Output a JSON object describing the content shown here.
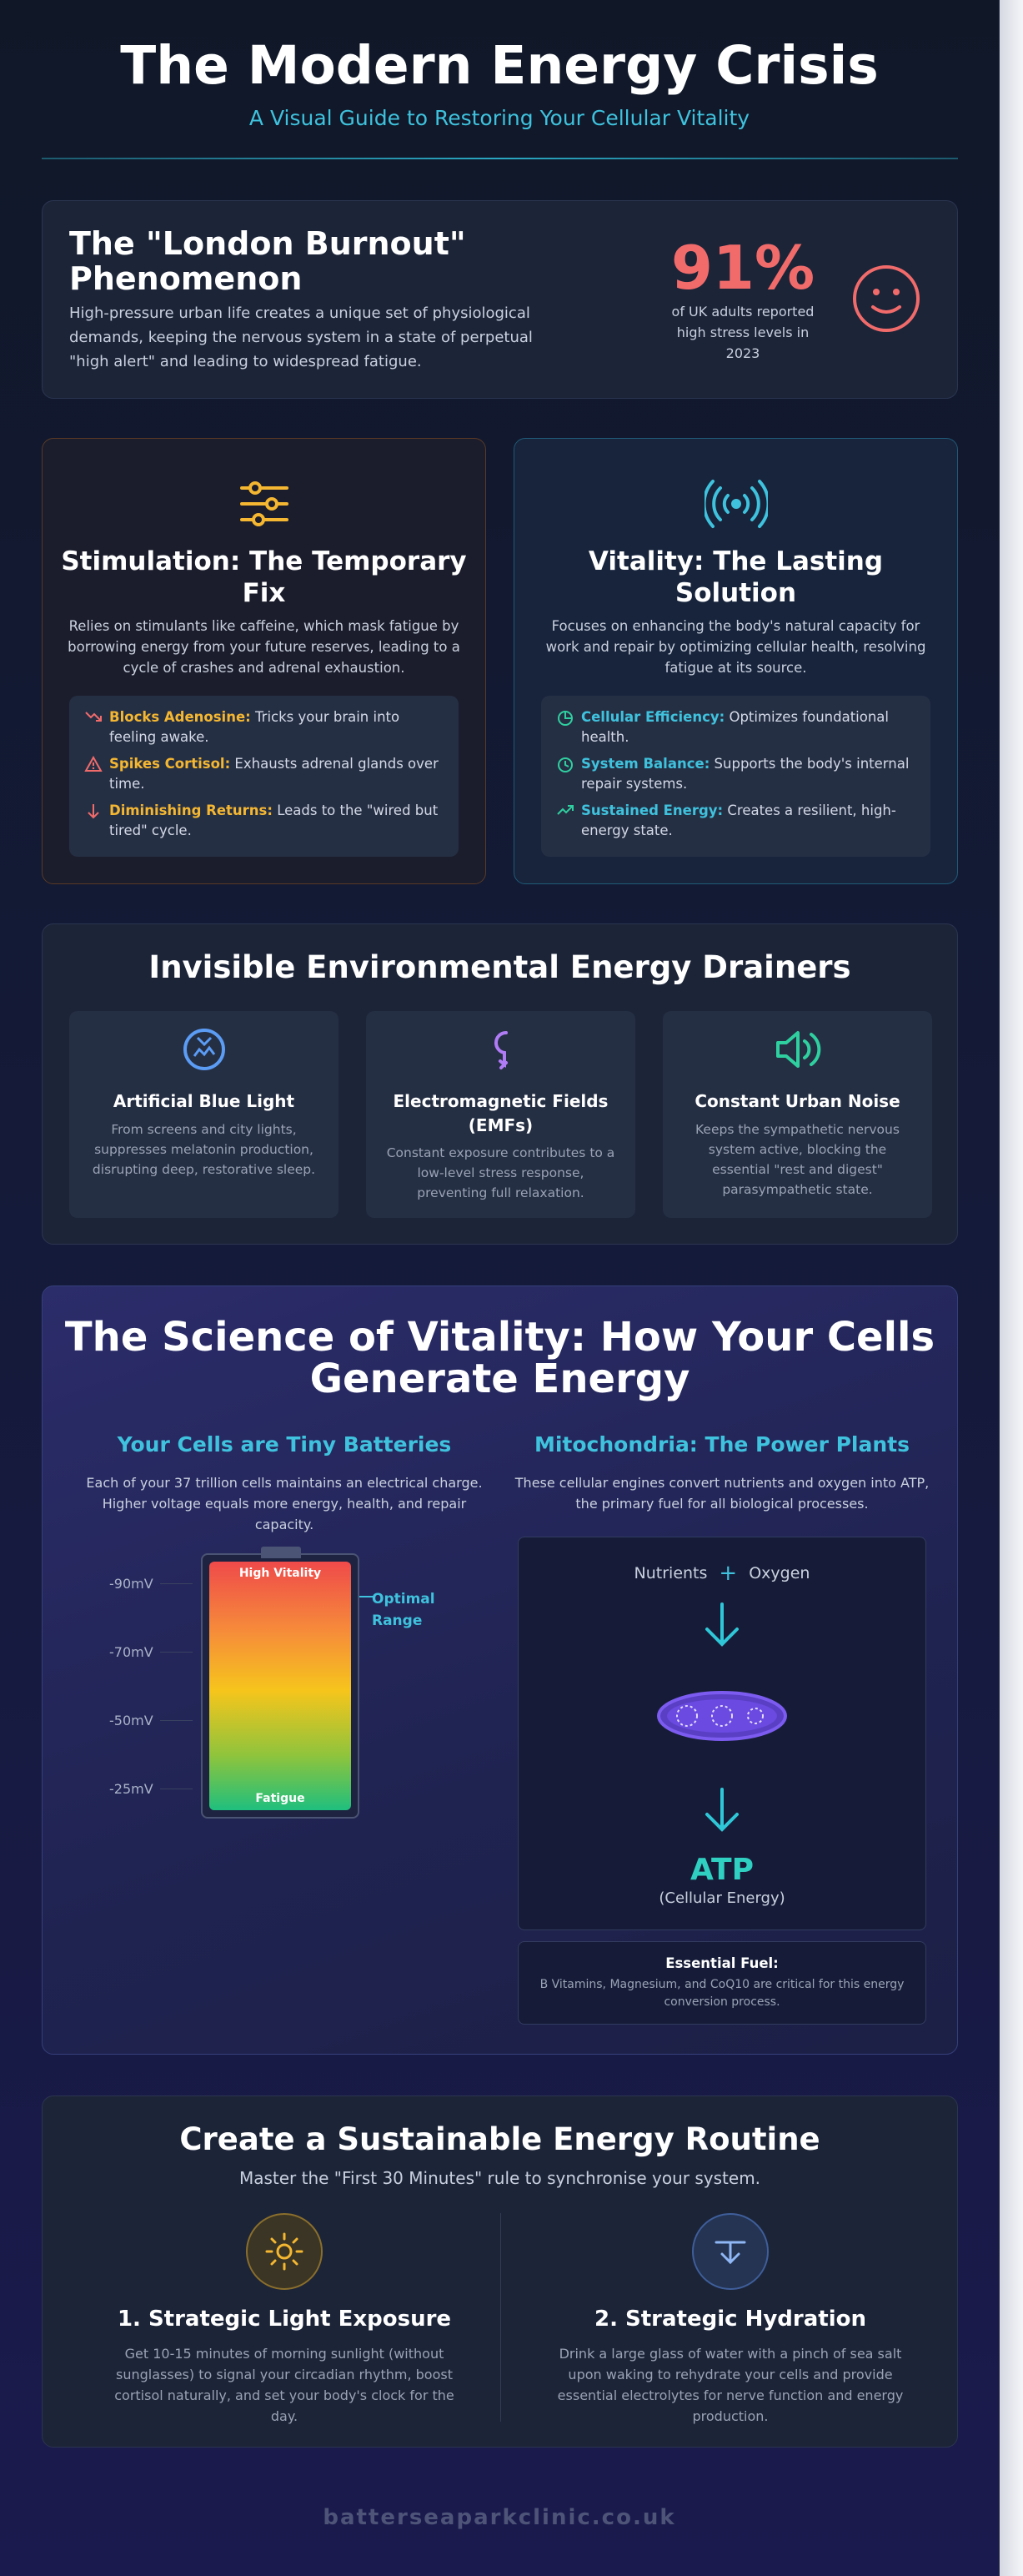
{
  "header": {
    "title": "The Modern Energy Crisis",
    "subtitle": "A Visual Guide to Restoring Your Cellular Vitality"
  },
  "london": {
    "title": "The \"London Burnout\" Phenomenon",
    "body": "High-pressure urban life creates a unique set of physiological demands, keeping the nervous system in a state of perpetual \"high alert\" and leading to widespread fatigue.",
    "stat_value": "91%",
    "stat_label": "of UK adults reported high stress levels in 2023",
    "icon": "smiley-face-icon"
  },
  "stimulation": {
    "icon": "sliders-icon",
    "title": "Stimulation: The Temporary Fix",
    "desc": "Relies on stimulants like caffeine, which mask fatigue by borrowing energy from your future reserves, leading to a cycle of crashes and adrenal exhaustion.",
    "items": [
      {
        "icon": "trend-down-icon",
        "bold": "Blocks Adenosine:",
        "text": " Tricks your brain into feeling awake."
      },
      {
        "icon": "warning-icon",
        "bold": "Spikes Cortisol:",
        "text": " Exhausts adrenal glands over time."
      },
      {
        "icon": "arrow-down-icon",
        "bold": "Diminishing Returns:",
        "text": " Leads to the \"wired but tired\" cycle."
      }
    ],
    "accent": "#f5b731"
  },
  "vitality": {
    "icon": "broadcast-icon",
    "title": "Vitality: The Lasting Solution",
    "desc": "Focuses on enhancing the body's natural capacity for work and repair by optimizing cellular health, resolving fatigue at its source.",
    "items": [
      {
        "icon": "pie-chart-icon",
        "bold": "Cellular Efficiency:",
        "text": " Optimizes foundational health."
      },
      {
        "icon": "clock-icon",
        "bold": "System Balance:",
        "text": " Supports the body's internal repair systems."
      },
      {
        "icon": "trend-up-icon",
        "bold": "Sustained Energy:",
        "text": " Creates a resilient, high-energy state."
      }
    ],
    "accent": "#3fc2dd"
  },
  "drainers": {
    "title": "Invisible Environmental Energy Drainers",
    "tiles": [
      {
        "icon": "blue-light-icon",
        "title": "Artificial Blue Light",
        "text": "From screens and city lights, suppresses melatonin production, disrupting deep, restorative sleep."
      },
      {
        "icon": "plug-icon",
        "title": "Electromagnetic Fields (EMFs)",
        "text": "Constant exposure contributes to a low-level stress response, preventing full relaxation."
      },
      {
        "icon": "speaker-icon",
        "title": "Constant Urban Noise",
        "text": "Keeps the sympathetic nervous system active, blocking the essential \"rest and digest\" parasympathetic state."
      }
    ]
  },
  "science": {
    "title": "The Science of Vitality: How Your Cells Generate Energy",
    "batteries_title": "Your Cells are Tiny Batteries",
    "batteries_text": "Each of your 37 trillion cells maintains an electrical charge. Higher voltage equals more energy, health, and repair capacity.",
    "battery_high": "High Vitality",
    "battery_low": "Fatigue",
    "ticks": [
      "-90mV",
      "-70mV",
      "-50mV",
      "-25mV"
    ],
    "optimal": "Optimal Range",
    "mito_title": "Mitochondria: The Power Plants",
    "mito_text": "These cellular engines convert nutrients and oxygen into ATP, the primary fuel for all biological processes.",
    "nutrients": "Nutrients",
    "plus": "+",
    "oxygen": "Oxygen",
    "atp": "ATP",
    "atp_sub": "(Cellular Energy)",
    "fuel_title": "Essential Fuel:",
    "fuel_text": "B Vitamins, Magnesium, and CoQ10 are critical for this energy conversion process."
  },
  "routine": {
    "title": "Create a Sustainable Energy Routine",
    "subtitle": "Master the \"First 30 Minutes\" rule to synchronise your system.",
    "steps": [
      {
        "icon": "sun-icon",
        "title": "1. Strategic Light Exposure",
        "text": "Get 10-15 minutes of morning sunlight (without sunglasses) to signal your circadian rhythm, boost cortisol naturally, and set your body's clock for the day."
      },
      {
        "icon": "water-drop-icon",
        "title": "2. Strategic Hydration",
        "text": "Drink a large glass of water with a pinch of sea salt upon waking to rehydrate your cells and provide essential electrolytes for nerve function and energy production."
      }
    ]
  },
  "footer": {
    "domain": "batterseaparkclinic.co.uk"
  }
}
